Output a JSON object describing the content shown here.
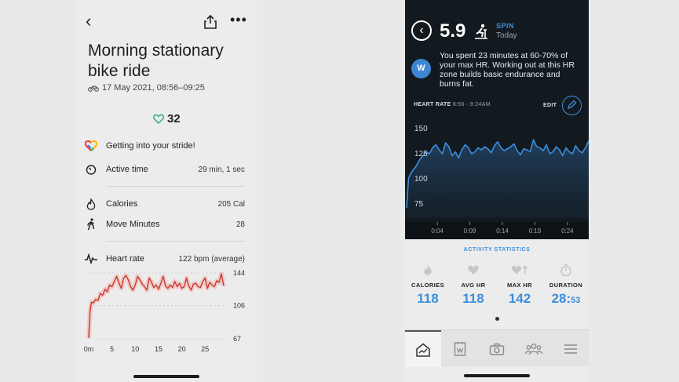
{
  "left_app": {
    "title": "Morning stationary bike ride",
    "date_range": "17 May 2021, 08:56–09:25",
    "heart_points": "32",
    "rows": [
      {
        "icon": "google-fit-heart-icon",
        "label": "Getting into your stride!",
        "value": ""
      },
      {
        "icon": "timer-icon",
        "label": "Active time",
        "value": "29 min, 1 sec"
      },
      {
        "icon": "flame-icon",
        "label": "Calories",
        "value": "205 Cal"
      },
      {
        "icon": "walking-icon",
        "label": "Move Minutes",
        "value": "28"
      },
      {
        "icon": "pulse-icon",
        "label": "Heart rate",
        "value": "122 bpm (average)"
      }
    ],
    "chart_data": {
      "type": "line",
      "title": "",
      "xlabel": "",
      "ylabel": "",
      "x_ticks": [
        "0m",
        "5",
        "10",
        "15",
        "20",
        "25"
      ],
      "y_ticks": [
        "144",
        "106",
        "67"
      ],
      "ylim": [
        67,
        144
      ],
      "xlim": [
        0,
        29
      ],
      "series_color": "#c8372d",
      "x": [
        0,
        0.3,
        0.6,
        1,
        1.5,
        2,
        2.5,
        3,
        3.5,
        4,
        4.5,
        5,
        5.5,
        6,
        6.5,
        7,
        7.5,
        8,
        8.5,
        9,
        9.5,
        10,
        10.5,
        11,
        11.5,
        12,
        12.5,
        13,
        13.5,
        14,
        14.5,
        15,
        15.5,
        16,
        16.5,
        17,
        17.5,
        18,
        18.5,
        19,
        19.5,
        20,
        20.5,
        21,
        21.5,
        22,
        22.5,
        23,
        23.5,
        24,
        24.5,
        25,
        25.5,
        26,
        26.5,
        27,
        27.5,
        28,
        28.5,
        29
      ],
      "y": [
        68,
        100,
        110,
        109,
        113,
        112,
        120,
        118,
        125,
        122,
        130,
        128,
        134,
        140,
        132,
        126,
        138,
        141,
        136,
        128,
        124,
        130,
        140,
        136,
        131,
        128,
        124,
        138,
        133,
        127,
        130,
        125,
        132,
        140,
        129,
        126,
        130,
        127,
        134,
        128,
        132,
        126,
        128,
        138,
        129,
        124,
        131,
        132,
        128,
        127,
        134,
        138,
        126,
        133,
        130,
        128,
        135,
        133,
        143,
        129
      ]
    }
  },
  "right_app": {
    "strain": "5.9",
    "activity": "SPIN",
    "day": "Today",
    "badge": "W",
    "message": "You spent 23 minutes at 60-70% of your max HR. Working out at this HR zone builds basic endurance and burns fat.",
    "hr_label": "HEART RATE",
    "hr_range": "8:56 - 9:24AM",
    "edit_label": "EDIT",
    "chart_data": {
      "type": "area",
      "title": "",
      "xlabel": "",
      "ylabel": "",
      "x_ticks": [
        "0:04",
        "0:09",
        "0:14",
        "0:19",
        "0:24"
      ],
      "y_ticks": [
        "150",
        "125",
        "100",
        "75"
      ],
      "ylim": [
        60,
        160
      ],
      "xlim": [
        0,
        28
      ],
      "series_color": "#3b8ee0",
      "x": [
        0,
        0.3,
        0.6,
        1,
        1.5,
        2,
        2.5,
        3,
        3.5,
        4,
        4.5,
        5,
        5.5,
        6,
        6.5,
        7,
        7.5,
        8,
        8.5,
        9,
        9.5,
        10,
        10.5,
        11,
        11.5,
        12,
        12.5,
        13,
        13.5,
        14,
        14.5,
        15,
        15.5,
        16,
        16.5,
        17,
        17.5,
        18,
        18.5,
        19,
        19.5,
        20,
        20.5,
        21,
        21.5,
        22,
        22.5,
        23,
        23.5,
        24,
        24.5,
        25,
        25.5,
        26,
        26.5,
        27,
        27.5,
        28
      ],
      "y": [
        70,
        100,
        104,
        108,
        112,
        118,
        122,
        126,
        124,
        130,
        133,
        128,
        124,
        135,
        131,
        122,
        126,
        120,
        128,
        133,
        130,
        124,
        126,
        130,
        128,
        131,
        129,
        125,
        132,
        136,
        130,
        127,
        129,
        131,
        134,
        127,
        123,
        129,
        128,
        126,
        138,
        131,
        130,
        127,
        133,
        124,
        126,
        131,
        128,
        122,
        130,
        126,
        124,
        132,
        127,
        125,
        130,
        137
      ]
    },
    "stats_title": "ACTIVITY STATISTICS",
    "stats": [
      {
        "icon": "flame-icon",
        "label": "CALORIES",
        "value": "118",
        "suffix": ""
      },
      {
        "icon": "heart-icon",
        "label": "AVG HR",
        "value": "118",
        "suffix": ""
      },
      {
        "icon": "heart-up-icon",
        "label": "MAX HR",
        "value": "142",
        "suffix": ""
      },
      {
        "icon": "stopwatch-icon",
        "label": "DURATION",
        "value": "28:",
        "suffix": "53"
      }
    ],
    "tabs": [
      {
        "icon": "overview-icon",
        "active": true
      },
      {
        "icon": "journal-icon",
        "active": false
      },
      {
        "icon": "camera-icon",
        "active": false
      },
      {
        "icon": "community-icon",
        "active": false
      },
      {
        "icon": "menu-icon",
        "active": false
      }
    ]
  }
}
